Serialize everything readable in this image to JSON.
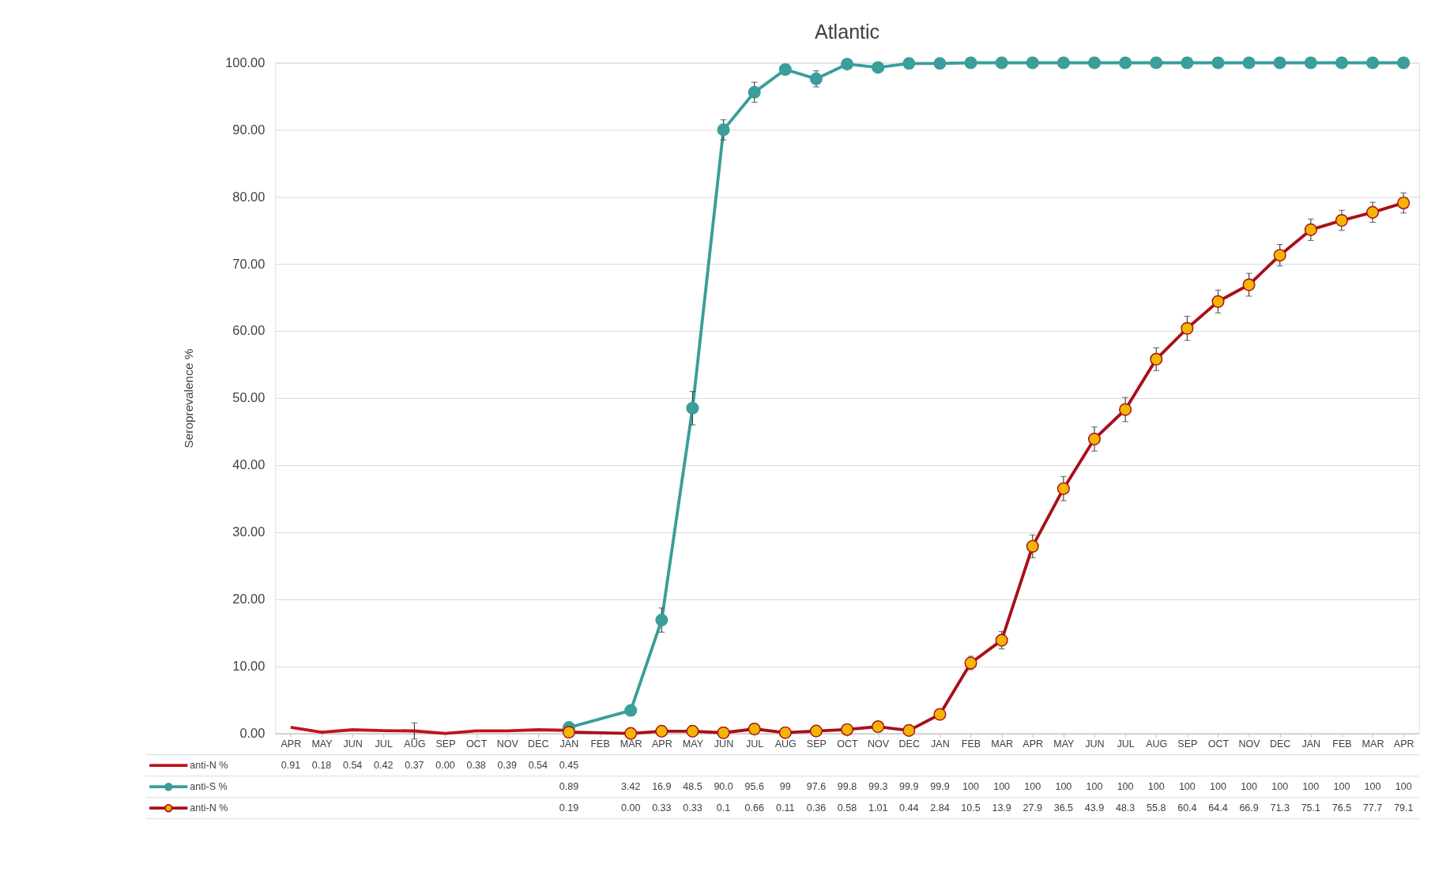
{
  "chart_data": {
    "type": "line",
    "title": "Atlantic",
    "ylabel": "Seroprevalence %",
    "categories": [
      "APR",
      "MAY",
      "JUN",
      "JUL",
      "AUG",
      "SEP",
      "OCT",
      "NOV",
      "DEC",
      "JAN",
      "FEB",
      "MAR",
      "APR",
      "MAY",
      "JUN",
      "JUL",
      "AUG",
      "SEP",
      "OCT",
      "NOV",
      "DEC",
      "JAN",
      "FEB",
      "MAR",
      "APR",
      "MAY",
      "JUN",
      "JUL",
      "AUG",
      "SEP",
      "OCT",
      "NOV",
      "DEC",
      "JAN",
      "FEB",
      "MAR",
      "APR"
    ],
    "ylim": [
      0,
      100
    ],
    "yticks": [
      {
        "value": 0,
        "label": "0.00"
      },
      {
        "value": 10,
        "label": "10.00"
      },
      {
        "value": 20,
        "label": "20.00"
      },
      {
        "value": 30,
        "label": "30.00"
      },
      {
        "value": 40,
        "label": "40.00"
      },
      {
        "value": 50,
        "label": "50.00"
      },
      {
        "value": 60,
        "label": "60.00"
      },
      {
        "value": 70,
        "label": "70.00"
      },
      {
        "value": 80,
        "label": "80.00"
      },
      {
        "value": 90,
        "label": "90.00"
      },
      {
        "value": 100,
        "label": "100.00"
      }
    ],
    "grid": "y",
    "legend": "bottom",
    "series": [
      {
        "name": "anti-N %",
        "color": "#c0141c",
        "marker": "none",
        "values": [
          0.91,
          0.18,
          0.54,
          0.42,
          0.37,
          0.0,
          0.38,
          0.39,
          0.54,
          0.45,
          null,
          null,
          null,
          null,
          null,
          null,
          null,
          null,
          null,
          null,
          null,
          null,
          null,
          null,
          null,
          null,
          null,
          null,
          null,
          null,
          null,
          null,
          null,
          null,
          null,
          null,
          null
        ],
        "value_labels": [
          "0.91",
          "0.18",
          "0.54",
          "0.42",
          "0.37",
          "0.00",
          "0.38",
          "0.39",
          "0.54",
          "0.45",
          null,
          null,
          null,
          null,
          null,
          null,
          null,
          null,
          null,
          null,
          null,
          null,
          null,
          null,
          null,
          null,
          null,
          null,
          null,
          null,
          null,
          null,
          null,
          null,
          null,
          null,
          null
        ],
        "errors": [
          null,
          null,
          null,
          null,
          1.2,
          null,
          null,
          null,
          null,
          null,
          null,
          null,
          null,
          null,
          null,
          null,
          null,
          null,
          null,
          null,
          null,
          null,
          null,
          null,
          null,
          null,
          null,
          null,
          null,
          null,
          null,
          null,
          null,
          null,
          null,
          null,
          null
        ]
      },
      {
        "name": "anti-S %",
        "color": "#3a9e9a",
        "marker": "circle",
        "values": [
          null,
          null,
          null,
          null,
          null,
          null,
          null,
          null,
          null,
          0.89,
          null,
          3.42,
          16.9,
          48.5,
          90.0,
          95.6,
          99,
          97.6,
          99.8,
          99.3,
          99.9,
          99.9,
          100,
          100,
          100,
          100,
          100,
          100,
          100,
          100,
          100,
          100,
          100,
          100,
          100,
          100,
          100
        ],
        "value_labels": [
          null,
          null,
          null,
          null,
          null,
          null,
          null,
          null,
          null,
          "0.89",
          null,
          "3.42",
          "16.9",
          "48.5",
          "90.0",
          "95.6",
          "99",
          "97.6",
          "99.8",
          "99.3",
          "99.9",
          "99.9",
          "100",
          "100",
          "100",
          "100",
          "100",
          "100",
          "100",
          "100",
          "100",
          "100",
          "100",
          "100",
          "100",
          "100",
          "100"
        ],
        "errors": [
          null,
          null,
          null,
          null,
          null,
          null,
          null,
          null,
          null,
          null,
          null,
          null,
          1.8,
          2.5,
          1.5,
          1.5,
          null,
          1.2,
          null,
          null,
          null,
          null,
          null,
          null,
          null,
          null,
          null,
          null,
          null,
          null,
          null,
          null,
          null,
          null,
          null,
          null,
          null
        ]
      },
      {
        "name": "anti-N %",
        "color": "#a8101a",
        "marker": "circle",
        "colors": [
          null,
          null,
          null,
          null,
          null,
          null,
          null,
          null,
          null,
          "#f5b400",
          null,
          "#f5b400",
          "#f5b400",
          "#f5b400",
          "#f5b400",
          "#f5b400",
          "#f5b400",
          "#f5b400",
          "#f5b400",
          "#f5b400",
          "#f5b400",
          "#f5b400",
          "#f5b400",
          "#f5b400",
          "#f5b400",
          "#f5b400",
          "#f5b400",
          "#f5b400",
          "#f5b400",
          "#f5b400",
          "#f5b400",
          "#f5b400",
          "#f5b400",
          "#f5b400",
          "#f5b400",
          "#f5b400",
          "#f5b400"
        ],
        "values": [
          null,
          null,
          null,
          null,
          null,
          null,
          null,
          null,
          null,
          0.19,
          null,
          0.0,
          0.33,
          0.33,
          0.1,
          0.66,
          0.11,
          0.36,
          0.58,
          1.01,
          0.44,
          2.84,
          10.5,
          13.9,
          27.9,
          36.5,
          43.9,
          48.3,
          55.8,
          60.4,
          64.4,
          66.9,
          71.3,
          75.1,
          76.5,
          77.7,
          79.1
        ],
        "value_labels": [
          null,
          null,
          null,
          null,
          null,
          null,
          null,
          null,
          null,
          "0.19",
          null,
          "0.00",
          "0.33",
          "0.33",
          "0.1",
          "0.66",
          "0.11",
          "0.36",
          "0.58",
          "1.01",
          "0.44",
          "2.84",
          "10.5",
          "13.9",
          "27.9",
          "36.5",
          "43.9",
          "48.3",
          "55.8",
          "60.4",
          "64.4",
          "66.9",
          "71.3",
          "75.1",
          "76.5",
          "77.7",
          "79.1"
        ],
        "errors": [
          null,
          null,
          null,
          null,
          null,
          null,
          null,
          null,
          null,
          null,
          null,
          null,
          null,
          null,
          null,
          null,
          null,
          null,
          null,
          null,
          null,
          null,
          1.0,
          1.3,
          1.7,
          1.8,
          1.8,
          1.8,
          1.7,
          1.8,
          1.7,
          1.7,
          1.6,
          1.6,
          1.5,
          1.5,
          1.5
        ]
      }
    ]
  }
}
